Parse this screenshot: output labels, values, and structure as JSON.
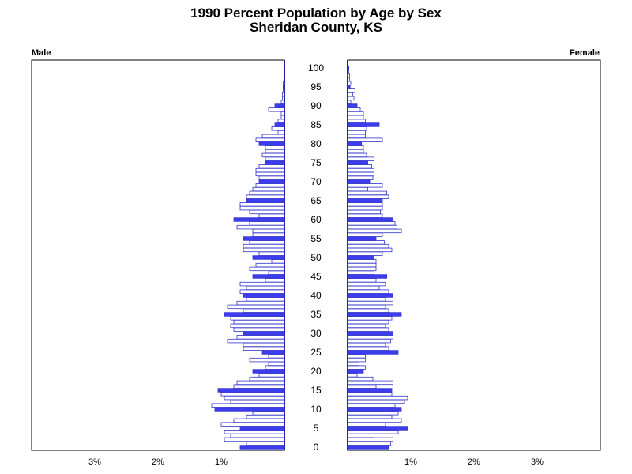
{
  "chart_data": {
    "type": "bar",
    "orientation": "horizontal-population-pyramid",
    "title": "1990 Percent Population by Age by Sex",
    "subtitle": "Sheridan County, KS",
    "left_label": "Male",
    "right_label": "Female",
    "age_ticks": [
      "0",
      "5",
      "10",
      "15",
      "20",
      "25",
      "30",
      "35",
      "40",
      "45",
      "50",
      "55",
      "60",
      "65",
      "70",
      "75",
      "80",
      "85",
      "90",
      "95",
      "100"
    ],
    "pct_ticks": [
      {
        "value": 3,
        "label": "3%"
      },
      {
        "value": 2,
        "label": "2%"
      },
      {
        "value": 1,
        "label": "1%"
      }
    ],
    "female_pct_ticks": [
      {
        "value": 1,
        "label": "1%"
      },
      {
        "value": 2,
        "label": "2%"
      },
      {
        "value": 3,
        "label": "3%"
      }
    ],
    "xlim": [
      0,
      4
    ],
    "ages": [
      0,
      1,
      2,
      3,
      4,
      5,
      6,
      7,
      8,
      9,
      10,
      11,
      12,
      13,
      14,
      15,
      16,
      17,
      18,
      19,
      20,
      21,
      22,
      23,
      24,
      25,
      26,
      27,
      28,
      29,
      30,
      31,
      32,
      33,
      34,
      35,
      36,
      37,
      38,
      39,
      40,
      41,
      42,
      43,
      44,
      45,
      46,
      47,
      48,
      49,
      50,
      51,
      52,
      53,
      54,
      55,
      56,
      57,
      58,
      59,
      60,
      61,
      62,
      63,
      64,
      65,
      66,
      67,
      68,
      69,
      70,
      71,
      72,
      73,
      74,
      75,
      76,
      77,
      78,
      79,
      80,
      81,
      82,
      83,
      84,
      85,
      86,
      87,
      88,
      89,
      90,
      91,
      92,
      93,
      94,
      95,
      96,
      97,
      98,
      99,
      100
    ],
    "series": [
      {
        "name": "Male",
        "values": [
          0.7,
          0.6,
          0.95,
          0.85,
          0.95,
          0.7,
          1.0,
          0.8,
          0.6,
          0.5,
          1.1,
          1.15,
          0.85,
          0.95,
          1.0,
          1.05,
          0.8,
          0.75,
          0.55,
          0.4,
          0.5,
          0.3,
          0.25,
          0.55,
          0.25,
          0.35,
          0.65,
          0.65,
          0.9,
          0.75,
          0.65,
          0.8,
          0.85,
          0.8,
          0.85,
          0.95,
          0.65,
          0.9,
          0.75,
          0.6,
          0.65,
          0.7,
          0.6,
          0.7,
          0.3,
          0.5,
          0.25,
          0.55,
          0.45,
          0.2,
          0.5,
          0.4,
          0.65,
          0.65,
          0.55,
          0.65,
          0.5,
          0.5,
          0.75,
          0.55,
          0.8,
          0.4,
          0.55,
          0.7,
          0.7,
          0.6,
          0.6,
          0.55,
          0.5,
          0.45,
          0.4,
          0.4,
          0.45,
          0.45,
          0.4,
          0.3,
          0.3,
          0.35,
          0.3,
          0.3,
          0.4,
          0.45,
          0.35,
          0.1,
          0.2,
          0.15,
          0.1,
          0.05,
          0.05,
          0.25,
          0.15,
          0.05,
          0.03,
          0.03,
          0.02,
          0.02,
          0.02,
          0.0,
          0.0,
          0.0,
          0.0
        ]
      },
      {
        "name": "Female",
        "values": [
          0.65,
          0.68,
          0.72,
          0.42,
          0.8,
          0.95,
          0.6,
          0.85,
          0.7,
          0.8,
          0.85,
          0.75,
          0.9,
          0.95,
          0.7,
          0.7,
          0.45,
          0.72,
          0.4,
          0.15,
          0.25,
          0.28,
          0.18,
          0.28,
          0.28,
          0.8,
          0.65,
          0.6,
          0.68,
          0.72,
          0.72,
          0.65,
          0.6,
          0.65,
          0.7,
          0.85,
          0.65,
          0.6,
          0.72,
          0.6,
          0.72,
          0.65,
          0.5,
          0.6,
          0.45,
          0.62,
          0.42,
          0.45,
          0.45,
          0.45,
          0.42,
          0.55,
          0.7,
          0.65,
          0.58,
          0.45,
          0.55,
          0.85,
          0.78,
          0.75,
          0.72,
          0.55,
          0.52,
          0.55,
          0.55,
          0.55,
          0.65,
          0.62,
          0.32,
          0.55,
          0.35,
          0.4,
          0.42,
          0.42,
          0.38,
          0.32,
          0.42,
          0.3,
          0.25,
          0.25,
          0.22,
          0.55,
          0.28,
          0.28,
          0.3,
          0.5,
          0.28,
          0.25,
          0.25,
          0.2,
          0.15,
          0.05,
          0.1,
          0.08,
          0.12,
          0.04,
          0.05,
          0.03,
          0.03,
          0.02,
          0.02
        ]
      }
    ],
    "colors": {
      "hollow_fill": "#ffffff",
      "bar_stroke": "#3333cc",
      "highlight_fill": "#3d3df0",
      "frame": "#000000",
      "axis": "#1a1a99"
    },
    "highlight_every": 5,
    "grid": false,
    "legend": "none"
  }
}
